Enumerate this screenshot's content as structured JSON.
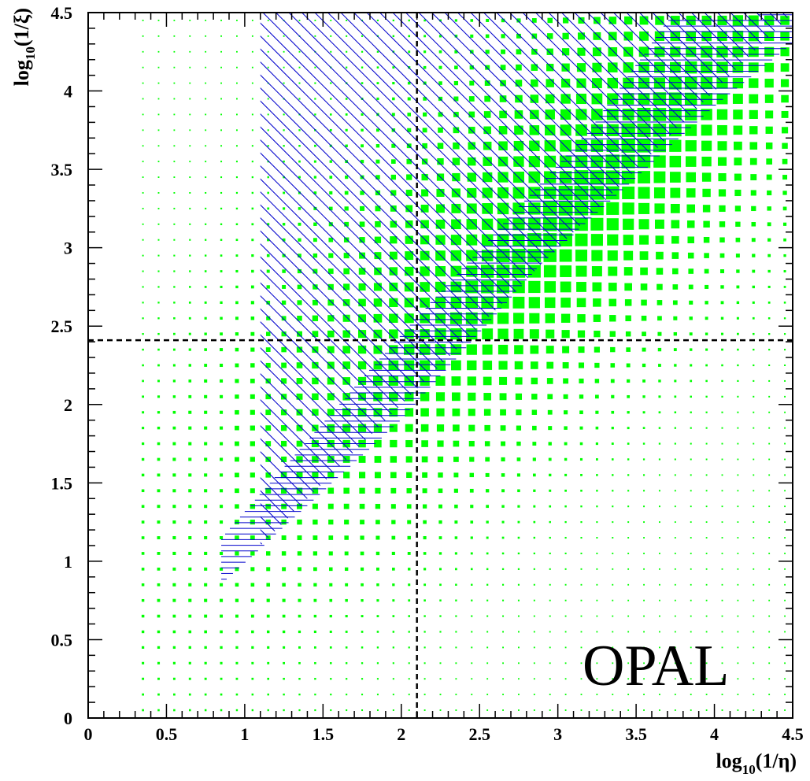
{
  "chart_data": {
    "type": "heatmap",
    "title": "",
    "xlabel": {
      "pre": "log",
      "sub": "10",
      "post": "(1/η)"
    },
    "ylabel": {
      "pre": "log",
      "sub": "10",
      "post": "(1/ξ)"
    },
    "xlim": [
      0,
      4.5
    ],
    "ylim": [
      0,
      4.5
    ],
    "x_ticks": [
      0,
      0.5,
      1,
      1.5,
      2,
      2.5,
      3,
      3.5,
      4,
      4.5
    ],
    "x_tick_labels": [
      "0",
      "0.5",
      "1",
      "1.5",
      "2",
      "2.5",
      "3",
      "3.5",
      "4",
      "4.5"
    ],
    "y_ticks": [
      0,
      0.5,
      1,
      1.5,
      2,
      2.5,
      3,
      3.5,
      4,
      4.5
    ],
    "y_tick_labels": [
      "0",
      "0.5",
      "1",
      "1.5",
      "2",
      "2.5",
      "3",
      "3.5",
      "4",
      "4.5"
    ],
    "bin_width": 0.1,
    "box_color": "#00ff00",
    "hatch_color": "#0000cc",
    "density_peak": {
      "x": 3.1,
      "y": 3.4
    },
    "cut_lines": {
      "x": 2.1,
      "y": 2.41
    },
    "hatched_region": {
      "band_lower_edge": [
        [
          0.85,
          0.85
        ],
        [
          2.0,
          1.9
        ],
        [
          2.9,
          2.9
        ],
        [
          4.0,
          3.9
        ],
        [
          4.5,
          4.3
        ]
      ],
      "band_upper_edge": [
        [
          0.85,
          1.15
        ],
        [
          2.0,
          2.45
        ],
        [
          3.2,
          3.75
        ],
        [
          3.7,
          4.45
        ],
        [
          4.5,
          4.5
        ]
      ],
      "upper_left_triangle": [
        [
          1.1,
          4.5
        ],
        [
          1.1,
          1.1
        ],
        [
          4.5,
          4.5
        ]
      ]
    },
    "annotation": "OPAL"
  }
}
